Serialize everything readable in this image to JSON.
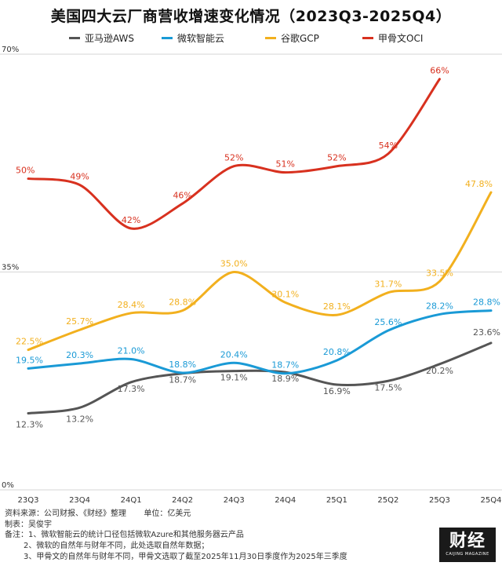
{
  "title": "美国四大云厂商营收增速变化情况（2023Q3-2025Q4）",
  "chart_data": {
    "type": "line",
    "x": [
      "23Q3",
      "23Q4",
      "24Q1",
      "24Q2",
      "24Q3",
      "24Q4",
      "25Q1",
      "25Q2",
      "25Q3",
      "25Q4"
    ],
    "ylim": [
      0,
      70
    ],
    "yticks": [
      "0%",
      "35%",
      "70%"
    ],
    "series": [
      {
        "name": "亚马逊AWS",
        "color": "#555555",
        "values": [
          12.3,
          13.2,
          17.3,
          18.7,
          19.1,
          18.9,
          16.9,
          17.5,
          20.2,
          23.6
        ],
        "labels": [
          "12.3%",
          "13.2%",
          "17.3%",
          "18.7%",
          "19.1%",
          "18.9%",
          "16.9%",
          "17.5%",
          "20.2%",
          "23.6%"
        ]
      },
      {
        "name": "微软智能云",
        "color": "#1a9ad6",
        "values": [
          19.5,
          20.3,
          21.0,
          18.8,
          20.4,
          18.7,
          20.8,
          25.6,
          28.2,
          28.8
        ],
        "labels": [
          "19.5%",
          "20.3%",
          "21.0%",
          "18.8%",
          "20.4%",
          "18.7%",
          "20.8%",
          "25.6%",
          "28.2%",
          "28.8%"
        ]
      },
      {
        "name": "谷歌GCP",
        "color": "#f2b01e",
        "values": [
          22.5,
          25.7,
          28.4,
          28.8,
          35.0,
          30.1,
          28.1,
          31.7,
          33.5,
          47.8
        ],
        "labels": [
          "22.5%",
          "25.7%",
          "28.4%",
          "28.8%",
          "35.0%",
          "30.1%",
          "28.1%",
          "31.7%",
          "33.5%",
          "47.8%"
        ]
      },
      {
        "name": "甲骨文OCI",
        "color": "#d8311f",
        "values": [
          50,
          49,
          42,
          46,
          52,
          51,
          52,
          54,
          66,
          null
        ],
        "labels": [
          "50%",
          "49%",
          "42%",
          "46%",
          "52%",
          "51%",
          "52%",
          "54%",
          "66%",
          null
        ]
      }
    ]
  },
  "footer": {
    "author": "制表：吴俊宇",
    "note1": "备注：1、微软智能云的统计口径包括微软Azure和其他服务器云产品",
    "note2": "2、微软的自然年与财年不同，此处选取自然年数据；",
    "note3": "3、甲骨文的自然年与财年不同，甲骨文选取了截至2025年11月30日季度作为2025年三季度",
    "source": "资料来源：公司财报、《财经》整理",
    "unit": "单位：亿美元"
  },
  "logo": {
    "text": "财经",
    "sub": "CAIJING MAGAZINE"
  }
}
